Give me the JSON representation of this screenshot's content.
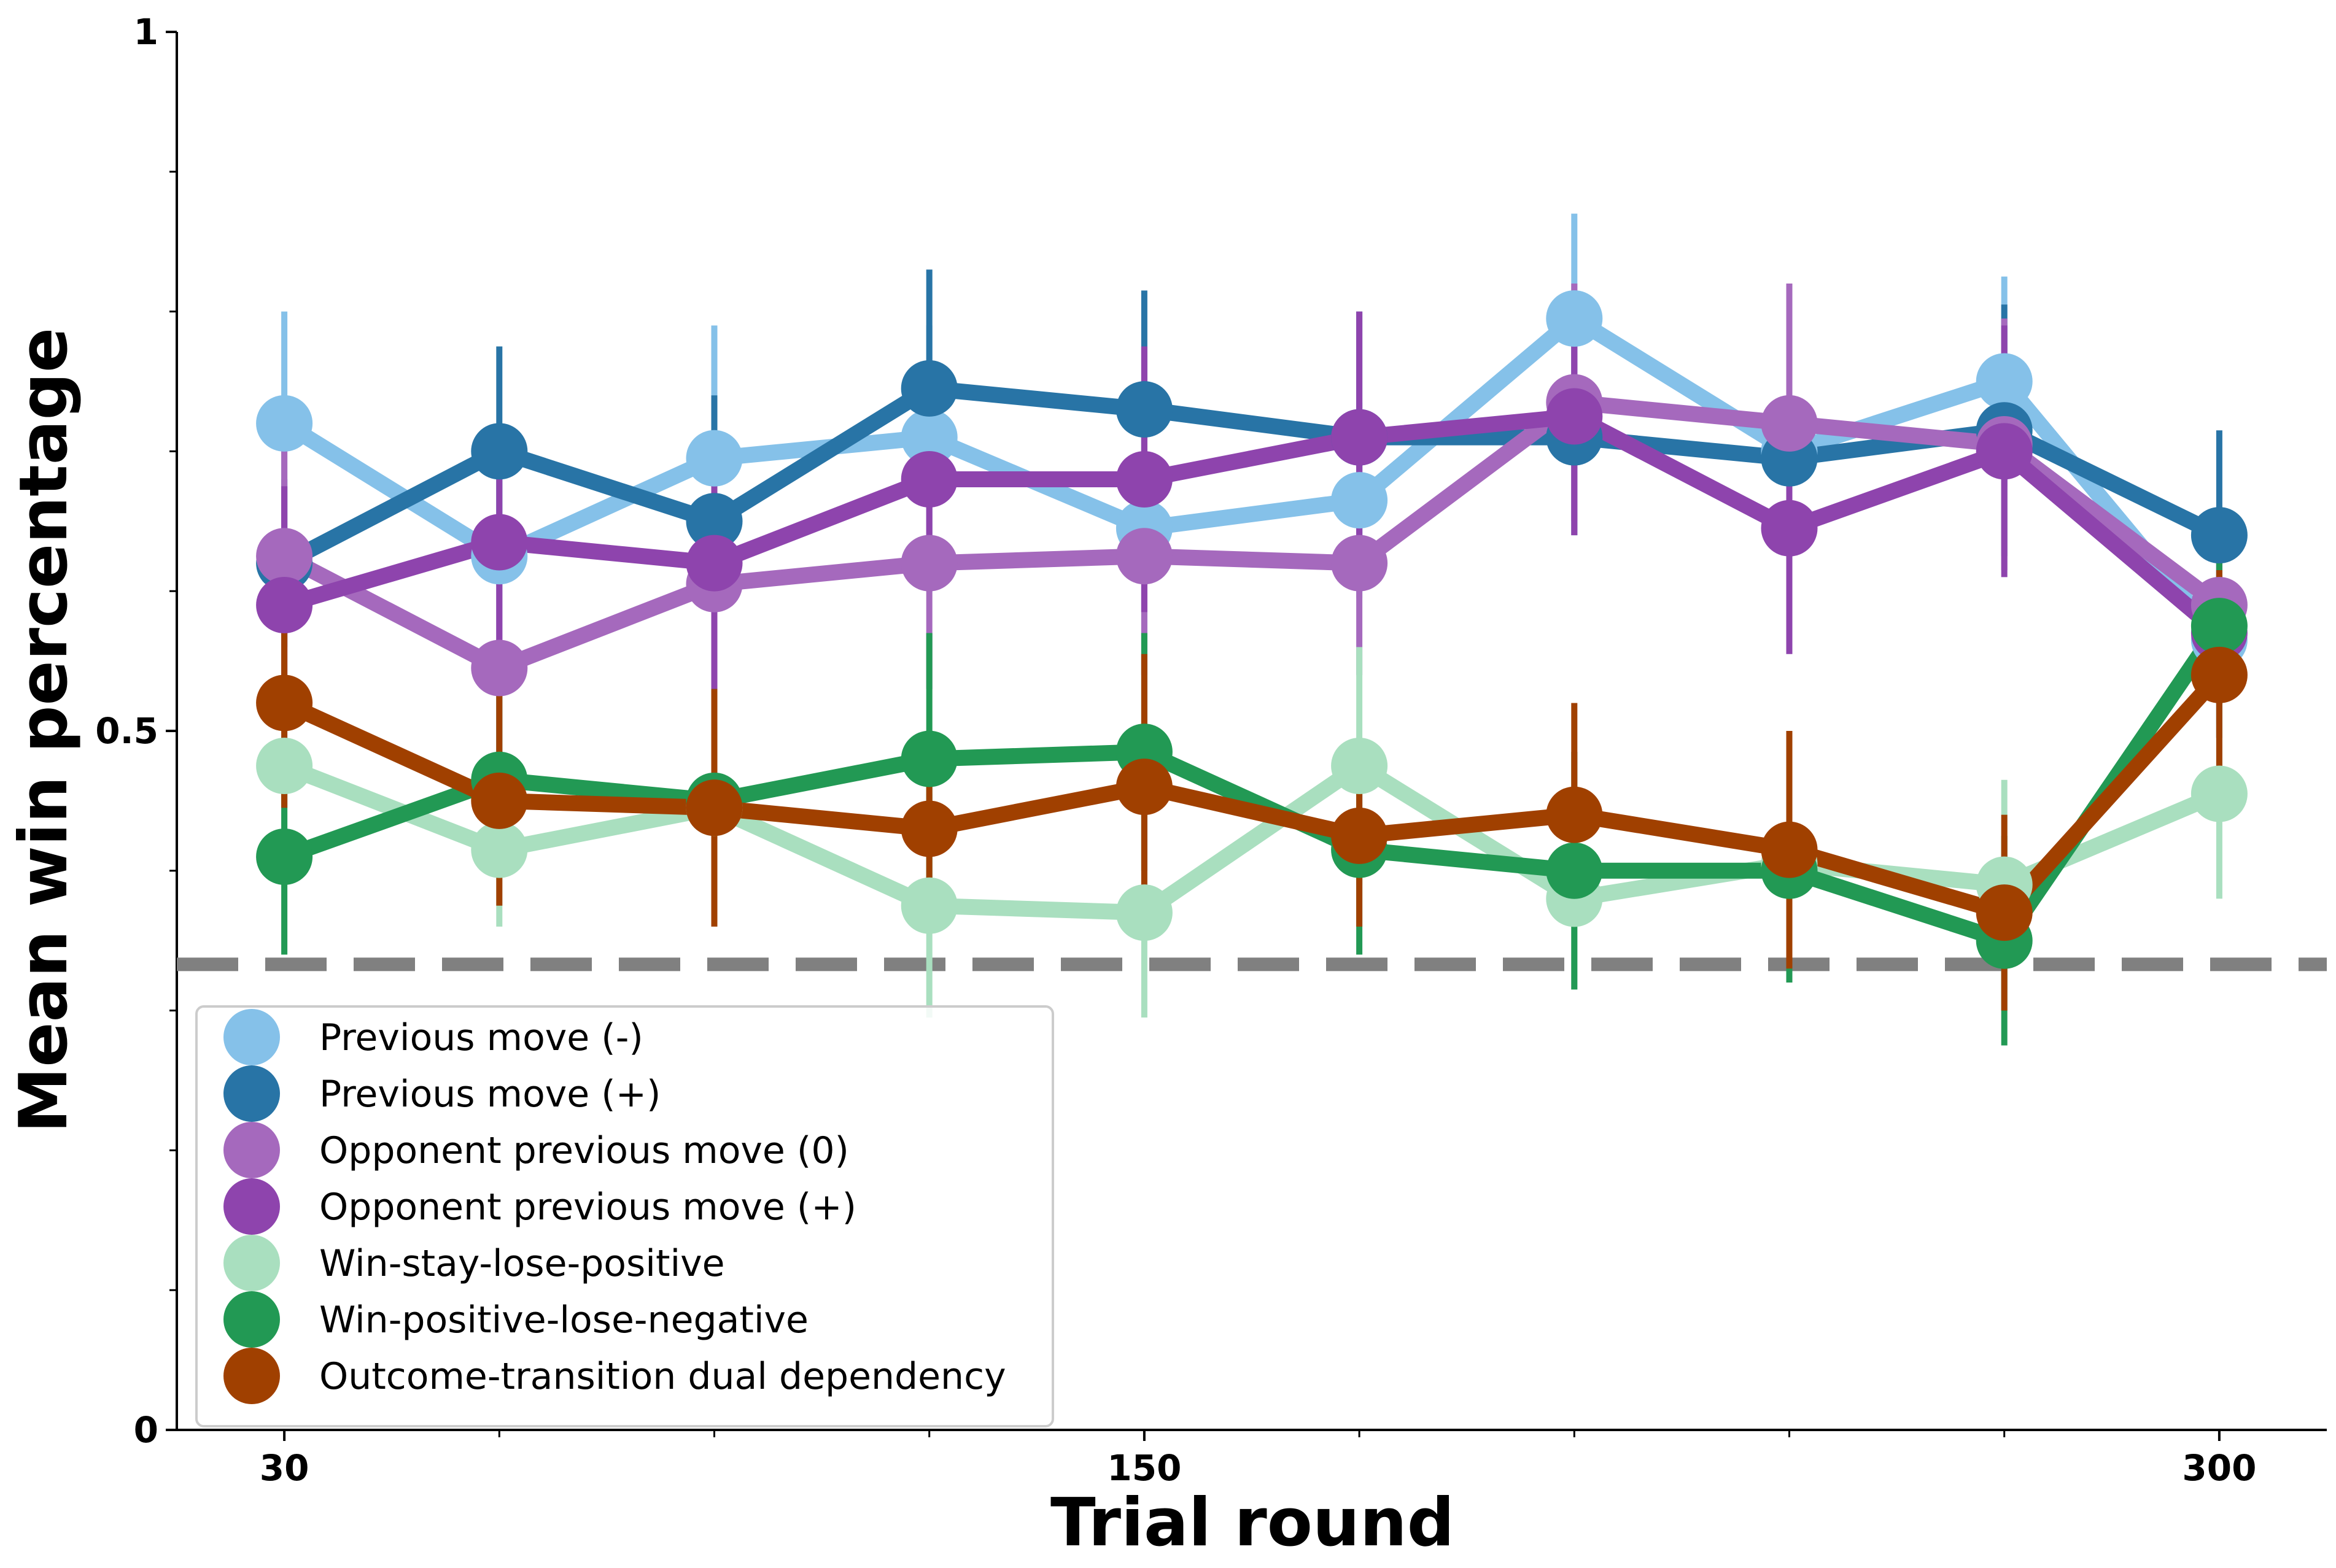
{
  "chart_data": {
    "type": "line",
    "title": "",
    "xlabel": "Trial round",
    "ylabel": "Mean win percentage",
    "x": [
      30,
      60,
      90,
      120,
      150,
      180,
      210,
      240,
      270,
      300
    ],
    "xticks": [
      30,
      150,
      300
    ],
    "xtick_labels": [
      "30",
      "150",
      "300"
    ],
    "yticks": [
      0,
      0.5,
      1
    ],
    "ytick_labels": [
      "0",
      "0.5",
      "1"
    ],
    "ylim": [
      0,
      1
    ],
    "xlim": [
      15,
      315
    ],
    "chance_level": 0.333,
    "legend_position": "lower-left",
    "grid": false,
    "series": [
      {
        "name": "Previous move (-)",
        "color": "#85C1E9",
        "values": [
          0.72,
          0.625,
          0.695,
          0.71,
          0.645,
          0.665,
          0.795,
          0.7,
          0.75,
          0.565
        ],
        "err": [
          0.08,
          0.07,
          0.095,
          0.08,
          0.08,
          0.07,
          0.075,
          0.07,
          0.075,
          0.06
        ]
      },
      {
        "name": "Previous move (+)",
        "color": "#2874A6",
        "values": [
          0.62,
          0.7,
          0.65,
          0.745,
          0.73,
          0.71,
          0.71,
          0.695,
          0.715,
          0.64
        ],
        "err": [
          0.06,
          0.075,
          0.09,
          0.085,
          0.085,
          0.09,
          0.07,
          0.07,
          0.09,
          0.075
        ]
      },
      {
        "name": "Opponent previous move (0)",
        "color": "#A569BD",
        "values": [
          0.625,
          0.545,
          0.605,
          0.62,
          0.625,
          0.62,
          0.735,
          0.72,
          0.705,
          0.59
        ],
        "err": [
          0.085,
          0.09,
          0.1,
          0.09,
          0.085,
          0.08,
          0.085,
          0.1,
          0.09,
          0.07
        ]
      },
      {
        "name": "Opponent previous move (+)",
        "color": "#8E44AD",
        "values": [
          0.59,
          0.635,
          0.62,
          0.68,
          0.68,
          0.71,
          0.725,
          0.645,
          0.7,
          0.57
        ],
        "err": [
          0.085,
          0.075,
          0.095,
          0.08,
          0.095,
          0.09,
          0.085,
          0.09,
          0.09,
          0.075
        ]
      },
      {
        "name": "Win-stay-lose-positive",
        "color": "#A9DFBF",
        "values": [
          0.475,
          0.415,
          0.445,
          0.375,
          0.37,
          0.475,
          0.38,
          0.405,
          0.39,
          0.455
        ],
        "err": [
          0.06,
          0.055,
          0.08,
          0.08,
          0.075,
          0.085,
          0.065,
          0.065,
          0.075,
          0.075
        ]
      },
      {
        "name": "Win-positive-lose-negative",
        "color": "#229954",
        "values": [
          0.41,
          0.465,
          0.45,
          0.48,
          0.485,
          0.415,
          0.4,
          0.4,
          0.35,
          0.575
        ],
        "err": [
          0.07,
          0.065,
          0.08,
          0.09,
          0.085,
          0.075,
          0.085,
          0.08,
          0.075,
          0.08
        ]
      },
      {
        "name": "Outcome-transition dual dependency",
        "color": "#A04000",
        "values": [
          0.52,
          0.45,
          0.445,
          0.43,
          0.46,
          0.425,
          0.44,
          0.415,
          0.37,
          0.54
        ],
        "err": [
          0.075,
          0.075,
          0.085,
          0.055,
          0.095,
          0.065,
          0.08,
          0.085,
          0.07,
          0.075
        ]
      }
    ]
  }
}
